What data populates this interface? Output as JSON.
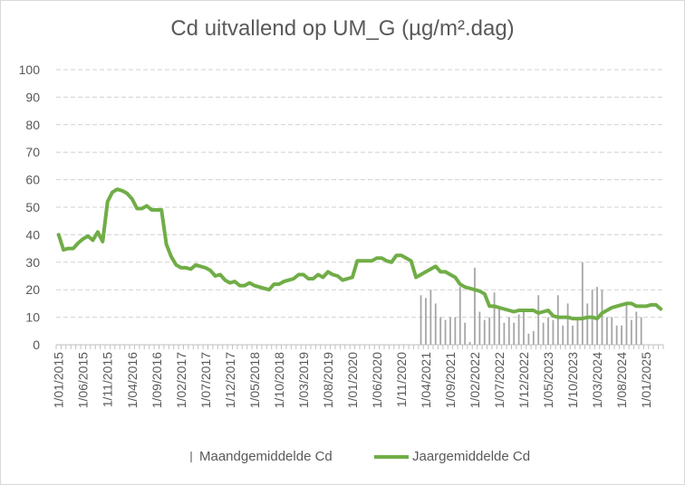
{
  "chart_data": {
    "type": "bar",
    "title": "Cd uitvallend op UM_G (µg/m².dag)",
    "xlabel": "",
    "ylabel": "",
    "ylim": [
      0,
      100
    ],
    "yticks": [
      0,
      10,
      20,
      30,
      40,
      50,
      60,
      70,
      80,
      90,
      100
    ],
    "grid": true,
    "legend_position": "bottom",
    "colors": {
      "bars": "#a6a6a6",
      "line": "#70ad47",
      "grid": "#d0d0d0",
      "text": "#595959"
    },
    "x_tick_labels": [
      "1/01/2015",
      "1/06/2015",
      "1/11/2015",
      "1/04/2016",
      "1/09/2016",
      "1/02/2017",
      "1/07/2017",
      "1/12/2017",
      "1/05/2018",
      "1/10/2018",
      "1/03/2019",
      "1/08/2019",
      "1/01/2020",
      "1/06/2020",
      "1/11/2020",
      "1/04/2021",
      "1/09/2021",
      "1/02/2022",
      "1/07/2022",
      "1/12/2022",
      "1/05/2023",
      "1/10/2023",
      "1/03/2024",
      "1/08/2024",
      "1/01/2025"
    ],
    "months_start": "2015-01",
    "series": [
      {
        "name": "Maandgemiddelde Cd",
        "kind": "bar",
        "start_month_index": 74,
        "values": [
          18,
          17,
          20,
          15,
          10,
          9,
          10,
          10,
          21,
          8,
          1,
          28,
          12,
          9,
          10,
          19,
          13,
          8,
          10,
          8,
          11,
          12,
          4,
          5,
          18,
          8,
          10,
          9,
          18,
          7,
          15,
          7,
          9,
          30,
          15,
          20,
          21,
          20,
          10,
          10,
          7,
          7,
          15,
          9,
          12,
          10
        ]
      },
      {
        "name": "Jaargemiddelde Cd",
        "kind": "line",
        "values": [
          40,
          34.5,
          35,
          35,
          37,
          38.5,
          39.5,
          38,
          41,
          37.5,
          52,
          55.5,
          56.5,
          56,
          55,
          53,
          49.5,
          49.5,
          50.5,
          49,
          49,
          49,
          36.5,
          32,
          29,
          28,
          28,
          27.5,
          29,
          28.5,
          28,
          27,
          25,
          25.5,
          23.5,
          22.5,
          23,
          21.5,
          21.5,
          22.5,
          21.5,
          21,
          20.5,
          20,
          22,
          22,
          23,
          23.5,
          24,
          25.5,
          25.5,
          24,
          24,
          25.5,
          24.5,
          26.5,
          25.5,
          25,
          23.5,
          24,
          24.5,
          30.5,
          30.5,
          30.5,
          30.5,
          31.5,
          31.5,
          30.5,
          30,
          32.5,
          32.5,
          31.5,
          30.5,
          24.5,
          25.5,
          26.5,
          27.5,
          28.5,
          26.5,
          26.5,
          25.5,
          24.5,
          22,
          21,
          20.5,
          20,
          19.5,
          18.5,
          14,
          14,
          13.5,
          13,
          12.5,
          12,
          12.5,
          12.5,
          12.5,
          12.5,
          11.5,
          12,
          12.5,
          10.5,
          10,
          10,
          10,
          9.5,
          9.5,
          9.5,
          10,
          10,
          9.5,
          11.5,
          12.5,
          13.5,
          14,
          14.5,
          15,
          15,
          14,
          14,
          14,
          14.5,
          14.5,
          13
        ]
      }
    ]
  }
}
